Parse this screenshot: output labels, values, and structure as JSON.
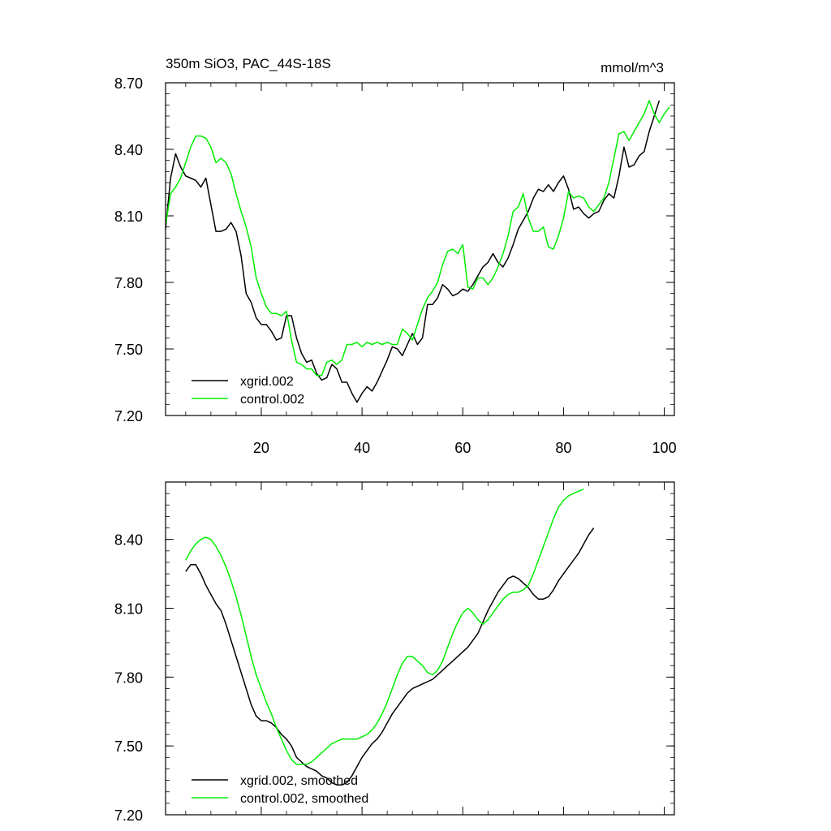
{
  "chart_data": [
    {
      "type": "line",
      "title": "350m SiO3, PAC_44S-18S",
      "units": "mmol/m^3",
      "xlim": [
        1,
        102
      ],
      "ylim": [
        7.2,
        8.7
      ],
      "yticks": [
        "7.20",
        "7.50",
        "7.80",
        "8.10",
        "8.40",
        "8.70"
      ],
      "xticks": [
        "20",
        "40",
        "60",
        "80",
        "100"
      ],
      "legend_position": "bottom-left",
      "series": [
        {
          "name": "xgrid.002",
          "color": "#000000",
          "x0": 1,
          "values": [
            8.04,
            8.27,
            8.38,
            8.32,
            8.28,
            8.27,
            8.26,
            8.23,
            8.27,
            8.15,
            8.03,
            8.03,
            8.04,
            8.07,
            8.03,
            7.92,
            7.75,
            7.71,
            7.64,
            7.61,
            7.61,
            7.58,
            7.54,
            7.55,
            7.65,
            7.65,
            7.55,
            7.48,
            7.44,
            7.45,
            7.39,
            7.36,
            7.37,
            7.43,
            7.41,
            7.35,
            7.35,
            7.3,
            7.26,
            7.3,
            7.33,
            7.31,
            7.35,
            7.4,
            7.45,
            7.51,
            7.5,
            7.47,
            7.52,
            7.57,
            7.52,
            7.55,
            7.7,
            7.7,
            7.73,
            7.79,
            7.77,
            7.74,
            7.75,
            7.77,
            7.76,
            7.79,
            7.83,
            7.87,
            7.89,
            7.93,
            7.89,
            7.87,
            7.91,
            7.97,
            8.04,
            8.08,
            8.12,
            8.18,
            8.22,
            8.21,
            8.24,
            8.21,
            8.25,
            8.28,
            8.22,
            8.13,
            8.14,
            8.11,
            8.09,
            8.11,
            8.12,
            8.17,
            8.2,
            8.18,
            8.28,
            8.41,
            8.32,
            8.33,
            8.37,
            8.39,
            8.48,
            8.55,
            8.62
          ]
        },
        {
          "name": "control.002",
          "color": "#00ee00",
          "x0": 1,
          "values": [
            8.06,
            8.2,
            8.23,
            8.27,
            8.34,
            8.41,
            8.46,
            8.46,
            8.45,
            8.41,
            8.34,
            8.36,
            8.34,
            8.29,
            8.2,
            8.12,
            8.05,
            7.96,
            7.82,
            7.75,
            7.69,
            7.66,
            7.66,
            7.65,
            7.67,
            7.54,
            7.44,
            7.43,
            7.41,
            7.41,
            7.38,
            7.38,
            7.44,
            7.45,
            7.43,
            7.45,
            7.52,
            7.52,
            7.53,
            7.51,
            7.53,
            7.52,
            7.53,
            7.52,
            7.53,
            7.52,
            7.52,
            7.59,
            7.57,
            7.54,
            7.61,
            7.68,
            7.73,
            7.76,
            7.8,
            7.88,
            7.94,
            7.95,
            7.93,
            7.97,
            7.78,
            7.77,
            7.82,
            7.82,
            7.79,
            7.82,
            7.87,
            7.93,
            8.01,
            8.12,
            8.14,
            8.2,
            8.09,
            8.03,
            8.03,
            8.05,
            7.96,
            7.95,
            8.01,
            8.09,
            8.21,
            8.18,
            8.19,
            8.18,
            8.14,
            8.12,
            8.15,
            8.18,
            8.25,
            8.36,
            8.47,
            8.48,
            8.44,
            8.48,
            8.52,
            8.56,
            8.62,
            8.56,
            8.52,
            8.56,
            8.59
          ]
        }
      ]
    },
    {
      "type": "line",
      "title": "",
      "units": "",
      "xlim": [
        1,
        102
      ],
      "ylim": [
        7.2,
        8.65
      ],
      "yticks": [
        "7.20",
        "7.50",
        "7.80",
        "8.10",
        "8.40"
      ],
      "xticks": [],
      "legend_position": "bottom-left",
      "series": [
        {
          "name": "xgrid.002, smoothed",
          "color": "#000000",
          "x0": 5,
          "values": [
            8.26,
            8.29,
            8.29,
            8.25,
            8.2,
            8.16,
            8.12,
            8.09,
            8.03,
            7.96,
            7.89,
            7.82,
            7.75,
            7.68,
            7.63,
            7.61,
            7.61,
            7.6,
            7.58,
            7.55,
            7.53,
            7.5,
            7.45,
            7.43,
            7.41,
            7.4,
            7.39,
            7.37,
            7.36,
            7.34,
            7.33,
            7.33,
            7.34,
            7.37,
            7.41,
            7.45,
            7.48,
            7.51,
            7.53,
            7.56,
            7.6,
            7.64,
            7.67,
            7.7,
            7.73,
            7.75,
            7.76,
            7.77,
            7.78,
            7.79,
            7.81,
            7.83,
            7.85,
            7.87,
            7.89,
            7.91,
            7.93,
            7.96,
            7.99,
            8.04,
            8.09,
            8.13,
            8.17,
            8.2,
            8.23,
            8.24,
            8.23,
            8.21,
            8.19,
            8.16,
            8.14,
            8.14,
            8.15,
            8.18,
            8.22,
            8.25,
            8.28,
            8.31,
            8.34,
            8.38,
            8.42,
            8.45
          ]
        },
        {
          "name": "control.002, smoothed",
          "color": "#00ee00",
          "x0": 5,
          "values": [
            8.31,
            8.35,
            8.38,
            8.4,
            8.41,
            8.4,
            8.37,
            8.33,
            8.28,
            8.22,
            8.15,
            8.07,
            7.98,
            7.89,
            7.81,
            7.75,
            7.69,
            7.64,
            7.58,
            7.53,
            7.48,
            7.44,
            7.42,
            7.42,
            7.42,
            7.43,
            7.45,
            7.47,
            7.49,
            7.51,
            7.52,
            7.53,
            7.53,
            7.53,
            7.53,
            7.54,
            7.55,
            7.57,
            7.6,
            7.64,
            7.69,
            7.75,
            7.81,
            7.86,
            7.89,
            7.89,
            7.87,
            7.85,
            7.82,
            7.81,
            7.83,
            7.87,
            7.93,
            7.99,
            8.04,
            8.08,
            8.1,
            8.08,
            8.05,
            8.03,
            8.05,
            8.08,
            8.11,
            8.14,
            8.16,
            8.17,
            8.17,
            8.18,
            8.2,
            8.25,
            8.31,
            8.37,
            8.43,
            8.49,
            8.54,
            8.57,
            8.59,
            8.6,
            8.61,
            8.62
          ]
        }
      ]
    }
  ]
}
